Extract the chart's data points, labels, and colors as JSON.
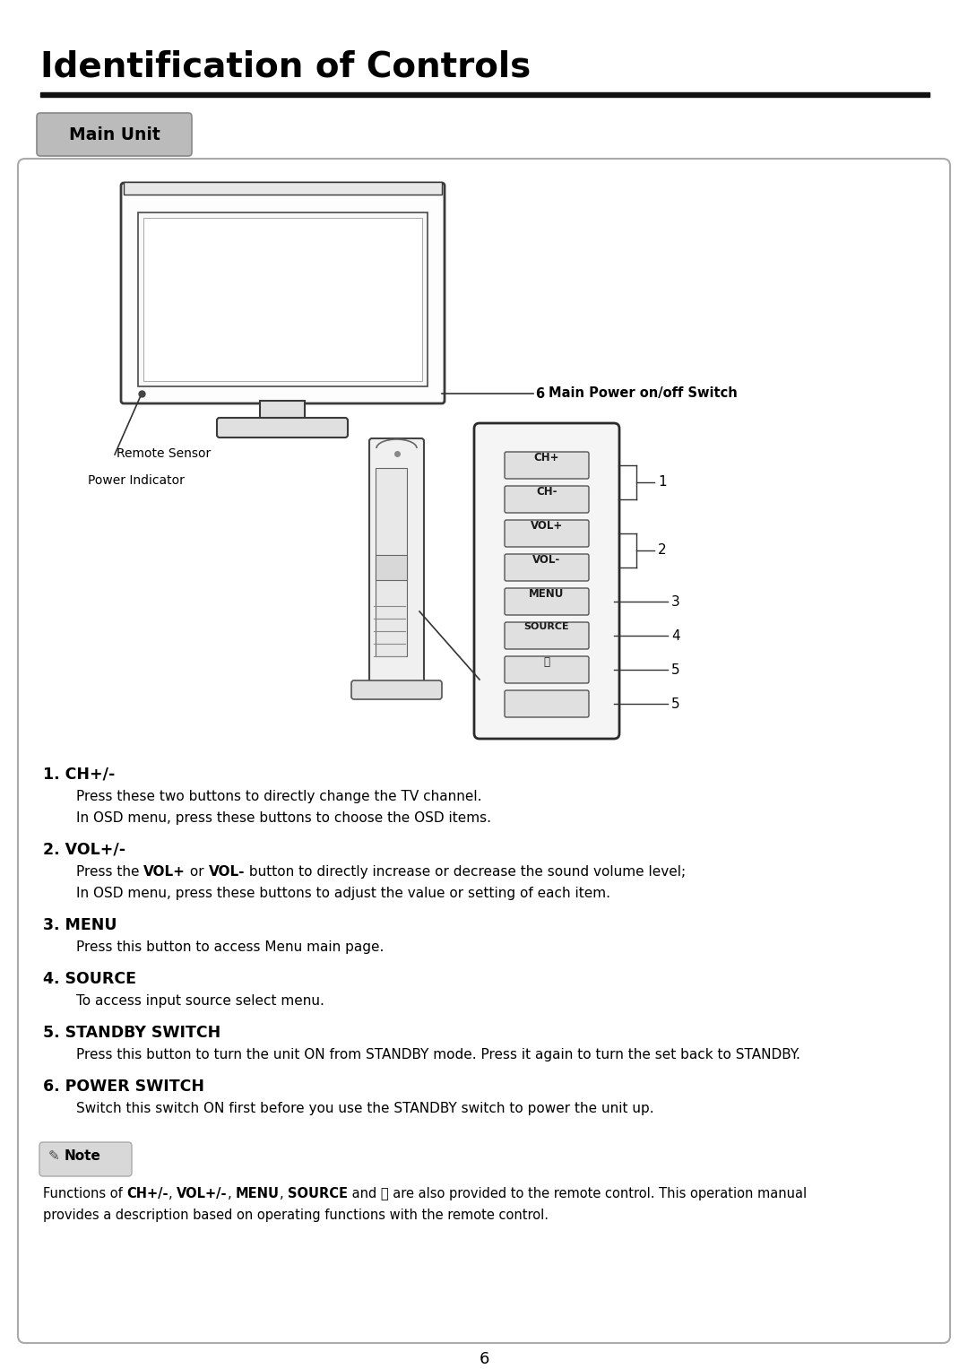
{
  "title": "Identification of Controls",
  "subtitle_badge": "Main Unit",
  "page_number": "6",
  "bg_color": "#ffffff",
  "items": [
    {
      "number": "1.",
      "label": " CH+/-",
      "descs": [
        {
          "parts": [
            {
              "t": "Press these two buttons to directly change the TV channel.",
              "b": false
            }
          ]
        },
        {
          "parts": [
            {
              "t": "In OSD menu, press these buttons to choose the OSD items.",
              "b": false
            }
          ]
        }
      ]
    },
    {
      "number": "2.",
      "label": " VOL+/-",
      "descs": [
        {
          "parts": [
            {
              "t": "Press the ",
              "b": false
            },
            {
              "t": "VOL+",
              "b": true
            },
            {
              "t": " or ",
              "b": false
            },
            {
              "t": "VOL-",
              "b": true
            },
            {
              "t": " button to directly increase or decrease the sound volume level;",
              "b": false
            }
          ]
        },
        {
          "parts": [
            {
              "t": "In OSD menu, press these buttons to adjust the value or setting of each item.",
              "b": false
            }
          ]
        }
      ]
    },
    {
      "number": "3.",
      "label": " MENU",
      "descs": [
        {
          "parts": [
            {
              "t": "Press this button to access Menu main page.",
              "b": false
            }
          ]
        }
      ]
    },
    {
      "number": "4.",
      "label": " SOURCE",
      "descs": [
        {
          "parts": [
            {
              "t": "To access input source select menu.",
              "b": false
            }
          ]
        }
      ]
    },
    {
      "number": "5.",
      "label": " STANDBY SWITCH",
      "descs": [
        {
          "parts": [
            {
              "t": "Press this button to turn the unit ON from STANDBY mode. Press it again to turn the set back to STANDBY.",
              "b": false
            }
          ]
        }
      ]
    },
    {
      "number": "6.",
      "label": " POWER SWITCH",
      "descs": [
        {
          "parts": [
            {
              "t": "Switch this switch ON first before you use the STANDBY switch to power the unit up.",
              "b": false
            }
          ]
        }
      ]
    }
  ],
  "note_line1": [
    {
      "t": "Functions of ",
      "b": false
    },
    {
      "t": "CH+/-",
      "b": true
    },
    {
      "t": ", ",
      "b": false
    },
    {
      "t": "VOL+/-",
      "b": true
    },
    {
      "t": ", ",
      "b": false
    },
    {
      "t": "MENU",
      "b": true
    },
    {
      "t": ", ",
      "b": false
    },
    {
      "t": "SOURCE",
      "b": true
    },
    {
      "t": " and ⏻ are also provided to the remote control. This operation manual",
      "b": false
    }
  ],
  "note_line2": "provides a description based on operating functions with the remote control.",
  "callout_power": "6 Main Power on/off Switch",
  "callout_remote": "Remote Sensor",
  "callout_indicator": "Power Indicator",
  "panel_buttons": [
    "CH+",
    "CH-",
    "VOL+",
    "VOL-",
    "MENU",
    "SOURCE",
    "⏻",
    ""
  ]
}
